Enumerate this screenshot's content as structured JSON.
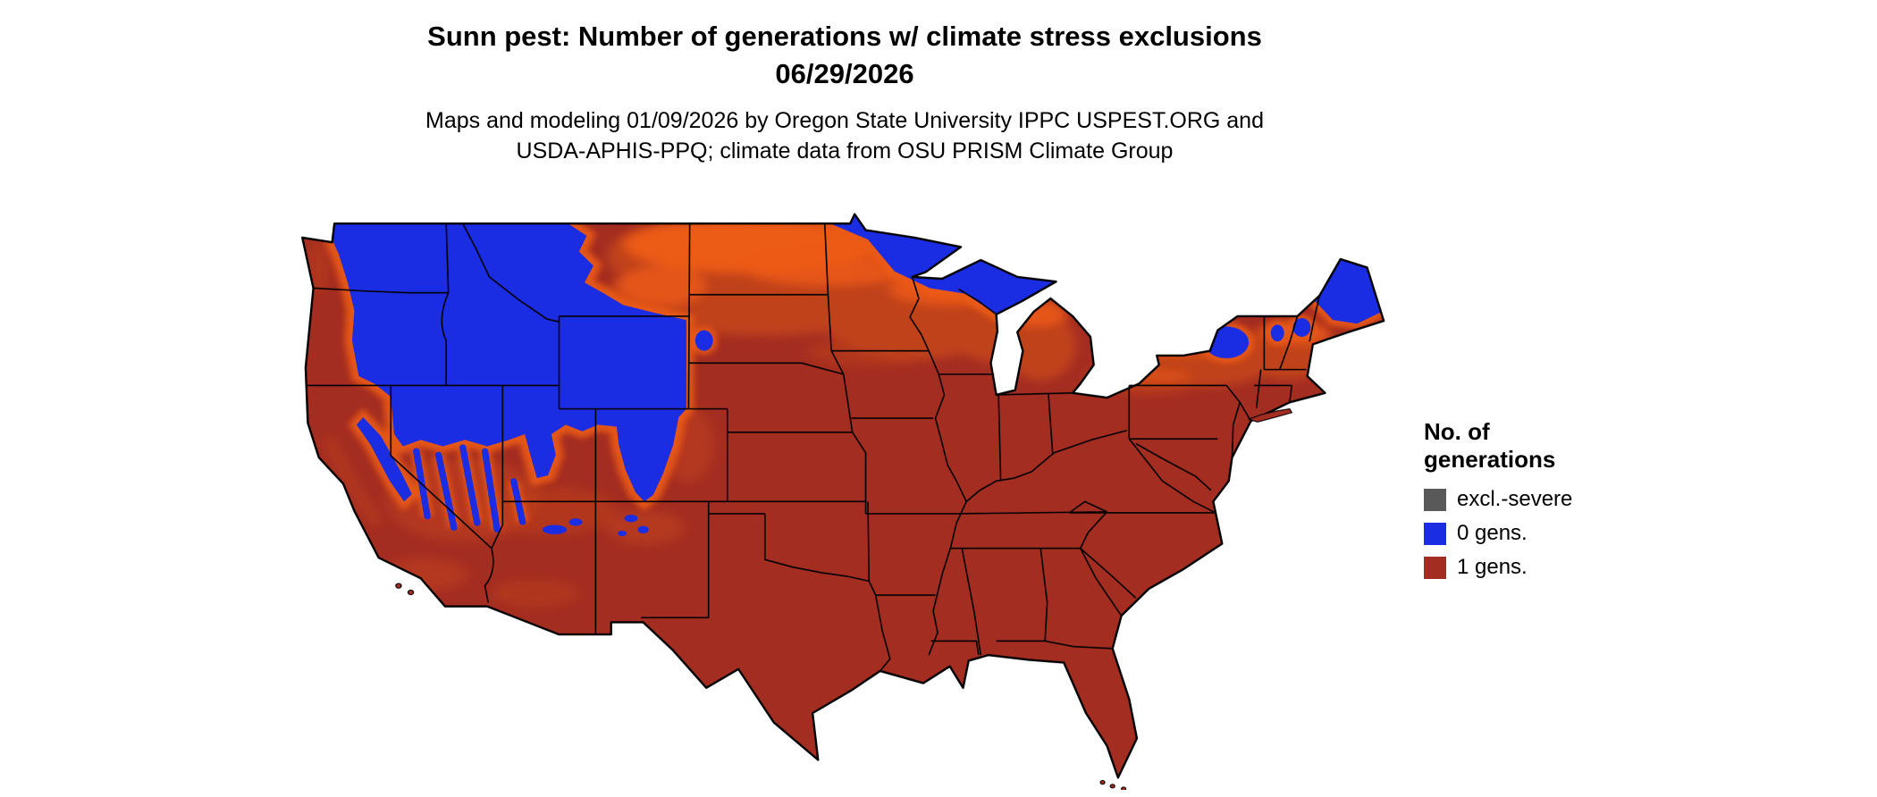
{
  "title": {
    "line1": "Sunn pest: Number of generations w/ climate stress exclusions",
    "line2": "06/29/2026"
  },
  "subtitle": {
    "line1": "Maps and modeling 01/09/2026 by Oregon State University IPPC USPEST.ORG and",
    "line2": "USDA-APHIS-PPQ; climate data from OSU PRISM Climate Group"
  },
  "legend": {
    "title_line1": "No. of",
    "title_line2": "generations",
    "items": [
      {
        "key": "excl-severe",
        "label": "excl.-severe",
        "color": "#595959"
      },
      {
        "key": "0-gens",
        "label": "0 gens.",
        "color": "#1B2DE3"
      },
      {
        "key": "1-gens",
        "label": "1 gens.",
        "color": "#A42D22"
      }
    ]
  },
  "map": {
    "region": "Contiguous United States",
    "colors": {
      "zero_generations": "#1B2DE3",
      "one_generation": "#A42D22",
      "transition_mid": "#C2441B",
      "transition_bright": "#EC5B16",
      "exclusion_severe": "#595959"
    }
  }
}
